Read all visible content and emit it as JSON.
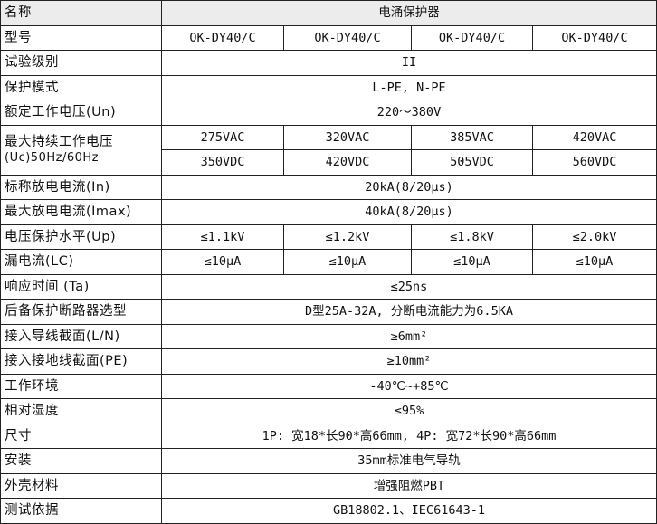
{
  "table": {
    "header": {
      "label": "名称",
      "value": "电涌保护器"
    },
    "model": {
      "label": "型号",
      "values": [
        "OK-DY40/C",
        "OK-DY40/C",
        "OK-DY40/C",
        "OK-DY40/C"
      ]
    },
    "test_class": {
      "label": "试验级别",
      "value": "II"
    },
    "protection_mode": {
      "label": "保护模式",
      "value": "L-PE, N-PE"
    },
    "rated_voltage": {
      "label": "额定工作电压(Un)",
      "value": "220～380V"
    },
    "max_continuous_voltage": {
      "label_line1": "最大持续工作电压",
      "label_line2": "(Uc)50Hz/60Hz",
      "ac": [
        "275VAC",
        "320VAC",
        "385VAC",
        "420VAC"
      ],
      "dc": [
        "350VDC",
        "420VDC",
        "505VDC",
        "560VDC"
      ]
    },
    "nominal_discharge": {
      "label": "标称放电电流(In)",
      "value": "20kA(8/20μs)"
    },
    "max_discharge": {
      "label": "最大放电电流(Imax)",
      "value": "40kA(8/20μs)"
    },
    "voltage_protection": {
      "label": "电压保护水平(Up)",
      "values": [
        "≤1.1kV",
        "≤1.2kV",
        "≤1.8kV",
        "≤2.0kV"
      ]
    },
    "leakage": {
      "label": "漏电流(LC)",
      "values": [
        "≤10μA",
        "≤10μA",
        "≤10μA",
        "≤10μA"
      ]
    },
    "response_time": {
      "label": "响应时间 (Ta)",
      "value": "≤25ns"
    },
    "backup_breaker": {
      "label": "后备保护断路器选型",
      "value": "D型25A-32A, 分断电流能力为6.5KA"
    },
    "wire_ln": {
      "label": "接入导线截面(L/N)",
      "value": "≥6mm²"
    },
    "wire_pe": {
      "label": "接入接地线截面(PE)",
      "value": "≥10mm²"
    },
    "environment": {
      "label": "工作环境",
      "value": "-40℃~+85℃"
    },
    "humidity": {
      "label": "相对湿度",
      "value": "≤95%"
    },
    "size": {
      "label": "尺寸",
      "value": "1P: 宽18*长90*高66mm, 4P: 宽72*长90*高66mm"
    },
    "mounting": {
      "label": "安装",
      "value": "35mm标准电气导轨"
    },
    "housing": {
      "label": "外壳材料",
      "value": "增强阻燃PBT"
    },
    "standard": {
      "label": "测试依据",
      "value": "GB18802.1、IEC61643-1"
    }
  }
}
